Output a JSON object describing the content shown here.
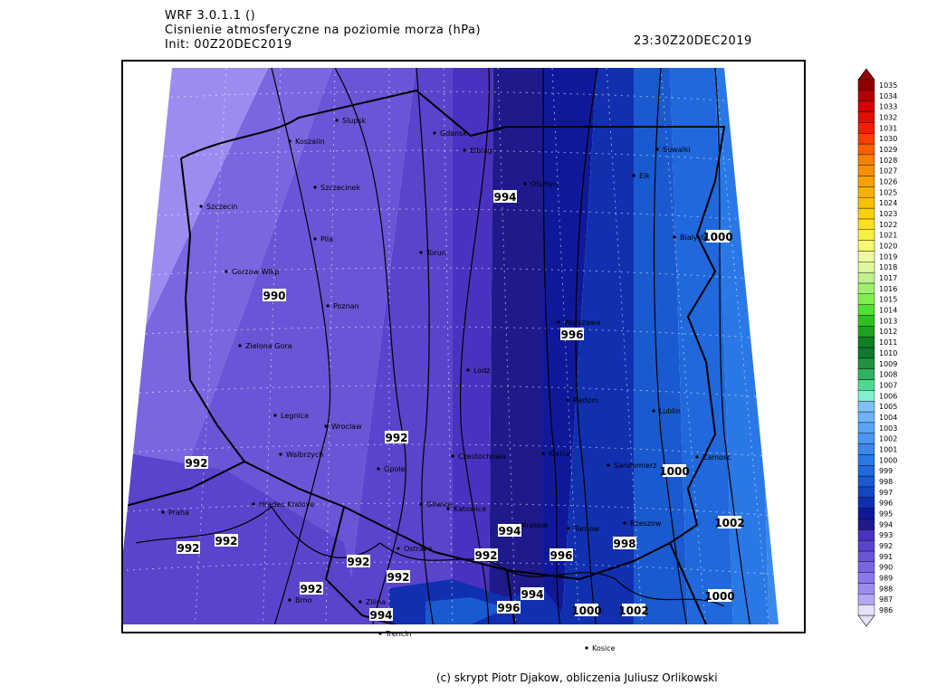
{
  "header": {
    "title": "WRF 3.0.1.1 ()",
    "subtitle": "Cisnienie atmosferyczne na poziomie morza (hPa)",
    "init": "Init: 00Z20DEC2019",
    "valid": "23:30Z20DEC2019"
  },
  "colorbar": {
    "levels": [
      986,
      987,
      988,
      989,
      990,
      991,
      992,
      993,
      994,
      995,
      996,
      997,
      998,
      999,
      1000,
      1001,
      1002,
      1003,
      1004,
      1005,
      1006,
      1007,
      1008,
      1009,
      1010,
      1011,
      1012,
      1013,
      1014,
      1015,
      1016,
      1017,
      1018,
      1019,
      1020,
      1021,
      1022,
      1023,
      1024,
      1025,
      1026,
      1027,
      1028,
      1029,
      1030,
      1031,
      1032,
      1033,
      1034,
      1035
    ],
    "colors": [
      "#e6e0fa",
      "#b4a8f5",
      "#9c8cf0",
      "#8a78ea",
      "#7a66e0",
      "#6a55d6",
      "#5a44cc",
      "#4a32c0",
      "#1e1a8c",
      "#10189a",
      "#1030b0",
      "#1446c0",
      "#1a5ad0",
      "#2068dc",
      "#2a78e6",
      "#3a88ec",
      "#4a96f0",
      "#5aa4f4",
      "#6cb2f6",
      "#80c0f8",
      "#80f0d0",
      "#50d890",
      "#30b060",
      "#209040",
      "#107830",
      "#108020",
      "#20a020",
      "#30c020",
      "#50e030",
      "#80f050",
      "#a0f070",
      "#c0f090",
      "#e0f8a0",
      "#f0f8a0",
      "#f8f870",
      "#f8f040",
      "#f8e020",
      "#f8d010",
      "#f8c000",
      "#f8b000",
      "#f8a000",
      "#f89000",
      "#f88000",
      "#f86000",
      "#f84000",
      "#f02000",
      "#e01000",
      "#d00000",
      "#b00000",
      "#900000"
    ]
  },
  "cities": [
    "Slupsk",
    "Koszalin",
    "Gdansk",
    "Elblag",
    "Suwalki",
    "Elk",
    "Olsztyn",
    "Szczecinek",
    "Szczecin",
    "Bialystok",
    "Pila",
    "Torun",
    "Gorzow Wlkp",
    "Poznan",
    "Warszawa",
    "Zielona Gora",
    "Lodz",
    "Radom",
    "Lublin",
    "Legnica",
    "Wroclaw",
    "Kielce",
    "Zamosc",
    "Walbrzych",
    "Sandomierz",
    "Opole",
    "Czestochowa",
    "Hradec Kralove",
    "Gliwice",
    "Katowice",
    "Praha",
    "Krakow",
    "Tarnow",
    "Rzeszow",
    "Ostrava",
    "Brno",
    "Zilina",
    "Kosice",
    "Trencin"
  ],
  "contour_labels": [
    994,
    1000,
    990,
    996,
    992,
    992,
    1000,
    1002,
    994,
    998,
    992,
    992,
    992,
    996,
    992,
    992,
    992,
    994,
    1000,
    996,
    1000,
    1002,
    994
  ],
  "credit": "(c) skrypt Piotr Djakow, obliczenia Juliusz Orlikowski"
}
